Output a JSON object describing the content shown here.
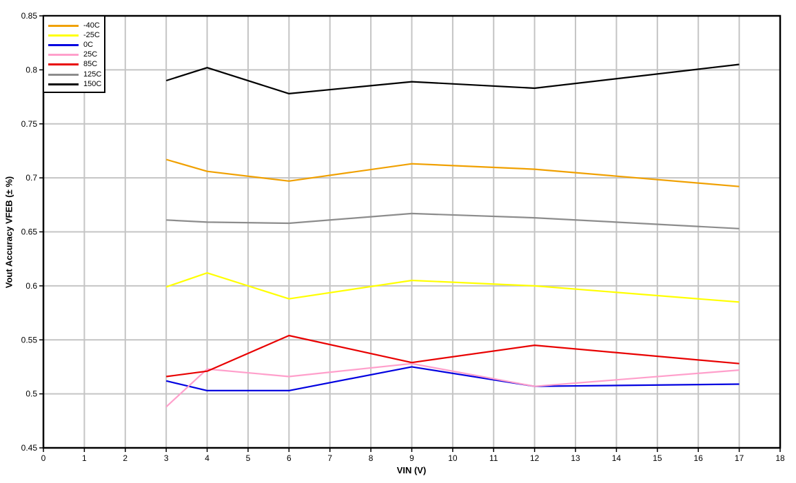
{
  "chart_data": {
    "type": "line",
    "title": "",
    "xlabel": "VIN (V)",
    "ylabel": "Vout Accuracy VFEB (± %)",
    "xlim": [
      0,
      18
    ],
    "ylim": [
      0.45,
      0.85
    ],
    "xticks": [
      0,
      1,
      2,
      3,
      4,
      5,
      6,
      7,
      8,
      9,
      10,
      11,
      12,
      13,
      14,
      15,
      16,
      17,
      18
    ],
    "yticks": [
      0.45,
      0.5,
      0.55,
      0.6,
      0.65,
      0.7,
      0.75,
      0.8,
      0.85
    ],
    "grid": true,
    "legend_position": "top-left",
    "x": [
      3,
      4,
      6,
      9,
      12,
      17
    ],
    "series": [
      {
        "name": "-40C",
        "color": "#F0A000",
        "values": [
          0.717,
          0.706,
          0.697,
          0.713,
          0.708,
          0.692
        ]
      },
      {
        "name": "-25C",
        "color": "#FFFF00",
        "values": [
          0.599,
          0.612,
          0.588,
          0.605,
          0.6,
          0.585
        ]
      },
      {
        "name": "0C",
        "color": "#0000E0",
        "values": [
          0.512,
          0.503,
          0.503,
          0.525,
          0.507,
          0.509
        ]
      },
      {
        "name": "25C",
        "color": "#FF9FCB",
        "values": [
          0.488,
          0.523,
          0.516,
          0.528,
          0.507,
          0.522
        ]
      },
      {
        "name": "85C",
        "color": "#E80000",
        "values": [
          0.516,
          0.521,
          0.554,
          0.529,
          0.545,
          0.528
        ]
      },
      {
        "name": "125C",
        "color": "#8C8C8C",
        "values": [
          0.661,
          0.659,
          0.658,
          0.667,
          0.663,
          0.653
        ]
      },
      {
        "name": "150C",
        "color": "#000000",
        "values": [
          0.79,
          0.802,
          0.778,
          0.789,
          0.783,
          0.805
        ]
      }
    ]
  },
  "colors": {
    "background": "#FFFFFF",
    "grid": "#C4C4C4",
    "axis": "#000000",
    "tick_label": "#000000"
  }
}
